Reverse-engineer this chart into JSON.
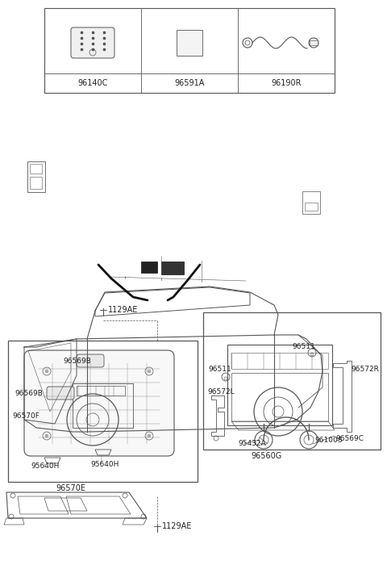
{
  "bg_color": "#ffffff",
  "line_color": "#555555",
  "text_color": "#222222",
  "fig_width": 4.8,
  "fig_height": 7.05,
  "dpi": 100,
  "labels": {
    "1129AE_top": "1129AE",
    "96570E": "96570E",
    "95640H_1": "95640H",
    "95640H_2": "95640H",
    "96570F": "96570F",
    "96569B_1": "96569B",
    "96569B_2": "96569B",
    "1129AE_bot": "1129AE",
    "96560G": "96560G",
    "96100S": "96100S",
    "96572L": "96572L",
    "96511_1": "96511",
    "96511_2": "96511",
    "96572R": "96572R",
    "95432A": "95432A",
    "96569C": "96569C",
    "96140C": "96140C",
    "96591A": "96591A",
    "96190R": "96190R"
  }
}
